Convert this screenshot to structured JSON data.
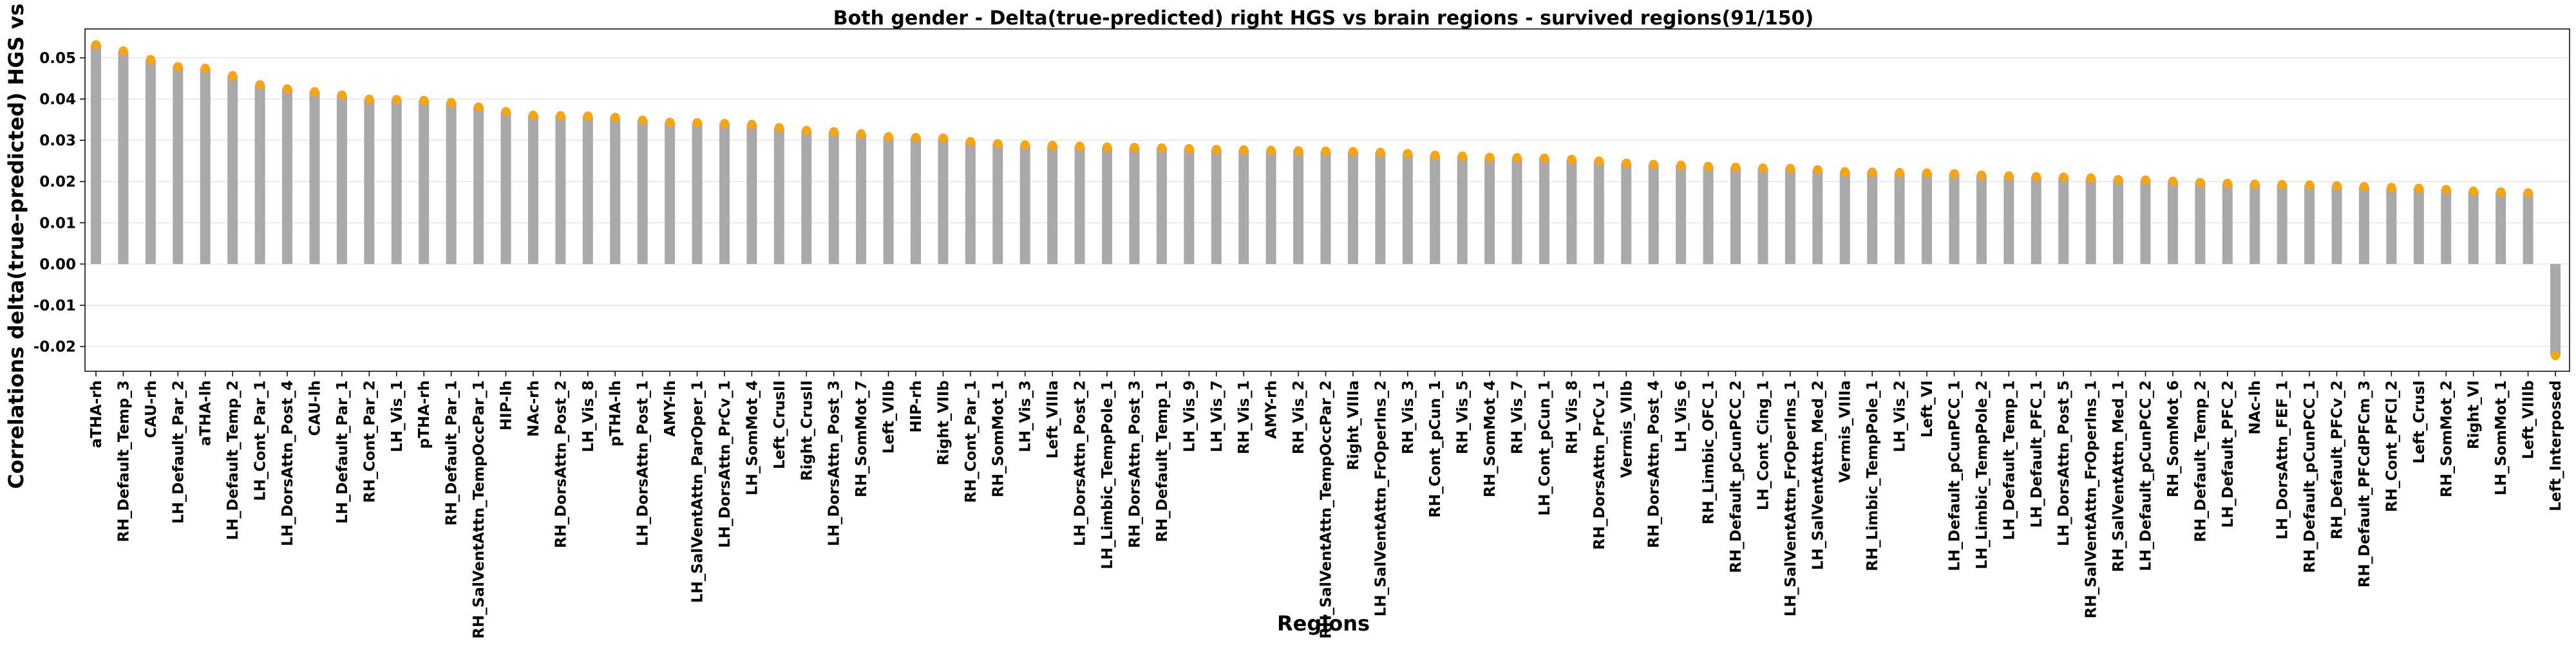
{
  "chart_data": {
    "type": "bar",
    "title": "Both gender - Delta(true-predicted) right HGS vs brain regions - survived regions(91/150)",
    "xlabel": "Regions",
    "ylabel": "Correlations delta(true-predicted) HGS vs brain",
    "ylim": [
      -0.026,
      0.057
    ],
    "yticks": [
      "0.05",
      "0.04",
      "0.03",
      "0.02",
      "0.01",
      "0.00",
      "-0.01",
      "-0.02"
    ],
    "grid": true,
    "bar_color": "#a9a9a9",
    "marker_color": "#ffa500",
    "categories": [
      "aTHA-rh",
      "RH_Default_Temp_3",
      "CAU-rh",
      "LH_Default_Par_2",
      "aTHA-lh",
      "LH_Default_Temp_2",
      "LH_Cont_Par_1",
      "LH_DorsAttn_Post_4",
      "CAU-lh",
      "LH_Default_Par_1",
      "RH_Cont_Par_2",
      "LH_Vis_1",
      "pTHA-rh",
      "RH_Default_Par_1",
      "RH_SalVentAttn_TempOccPar_1",
      "HIP-lh",
      "NAc-rh",
      "RH_DorsAttn_Post_2",
      "LH_Vis_8",
      "pTHA-lh",
      "LH_DorsAttn_Post_1",
      "AMY-lh",
      "LH_SalVentAttn_ParOper_1",
      "LH_DorsAttn_PrCv_1",
      "LH_SomMot_4",
      "Left_CrusII",
      "Right_CrusII",
      "LH_DorsAttn_Post_3",
      "RH_SomMot_7",
      "Left_VIIb",
      "HIP-rh",
      "Right_VIIb",
      "RH_Cont_Par_1",
      "RH_SomMot_1",
      "LH_Vis_3",
      "Left_VIIIa",
      "LH_DorsAttn_Post_2",
      "LH_Limbic_TempPole_1",
      "RH_DorsAttn_Post_3",
      "RH_Default_Temp_1",
      "LH_Vis_9",
      "LH_Vis_7",
      "RH_Vis_1",
      "AMY-rh",
      "RH_Vis_2",
      "RH_SalVentAttn_TempOccPar_2",
      "Right_VIIIa",
      "LH_SalVentAttn_FrOperIns_2",
      "RH_Vis_3",
      "RH_Cont_pCun_1",
      "RH_Vis_5",
      "RH_SomMot_4",
      "RH_Vis_7",
      "LH_Cont_pCun_1",
      "RH_Vis_8",
      "RH_DorsAttn_PrCv_1",
      "Vermis_VIIb",
      "RH_DorsAttn_Post_4",
      "LH_Vis_6",
      "RH_Limbic_OFC_1",
      "RH_Default_pCunPCC_2",
      "LH_Cont_Cing_1",
      "LH_SalVentAttn_FrOperIns_1",
      "LH_SalVentAttn_Med_2",
      "Vermis_VIIIa",
      "RH_Limbic_TempPole_1",
      "LH_Vis_2",
      "Left_VI",
      "LH_Default_pCunPCC_1",
      "LH_Limbic_TempPole_2",
      "LH_Default_Temp_1",
      "LH_Default_PFC_1",
      "LH_DorsAttn_Post_5",
      "RH_SalVentAttn_FrOperIns_1",
      "RH_SalVentAttn_Med_1",
      "LH_Default_pCunPCC_2",
      "RH_SomMot_6",
      "RH_Default_Temp_2",
      "LH_Default_PFC_2",
      "NAc-lh",
      "LH_DorsAttn_FEF_1",
      "RH_Default_pCunPCC_1",
      "RH_Default_PFCv_2",
      "RH_Default_PFCdPFCm_3",
      "RH_Cont_PFCl_2",
      "Left_CrusI",
      "RH_SomMot_2",
      "Right_VI",
      "LH_SomMot_1",
      "Left_VIIIb",
      "Left_Interposed"
    ],
    "values": [
      0.0532,
      0.0517,
      0.0496,
      0.0479,
      0.0475,
      0.0457,
      0.0435,
      0.0425,
      0.0418,
      0.041,
      0.04,
      0.0399,
      0.0397,
      0.0392,
      0.0381,
      0.037,
      0.0361,
      0.036,
      0.0359,
      0.0356,
      0.0349,
      0.0344,
      0.0343,
      0.0341,
      0.0339,
      0.0331,
      0.0324,
      0.0321,
      0.0316,
      0.0309,
      0.0307,
      0.0306,
      0.0297,
      0.0292,
      0.0289,
      0.0288,
      0.0286,
      0.0284,
      0.0283,
      0.0282,
      0.028,
      0.0278,
      0.0277,
      0.0276,
      0.0275,
      0.0274,
      0.0273,
      0.0271,
      0.0268,
      0.0264,
      0.0262,
      0.0259,
      0.0258,
      0.0257,
      0.0254,
      0.025,
      0.0245,
      0.0242,
      0.024,
      0.0237,
      0.0235,
      0.0233,
      0.0232,
      0.0229,
      0.0224,
      0.0223,
      0.0222,
      0.0221,
      0.0219,
      0.0216,
      0.0214,
      0.0212,
      0.0211,
      0.0209,
      0.0205,
      0.0204,
      0.0201,
      0.0198,
      0.0196,
      0.0194,
      0.0193,
      0.0192,
      0.019,
      0.0188,
      0.0186,
      0.0184,
      0.0181,
      0.0177,
      0.0175,
      0.0173,
      -0.0222
    ]
  }
}
